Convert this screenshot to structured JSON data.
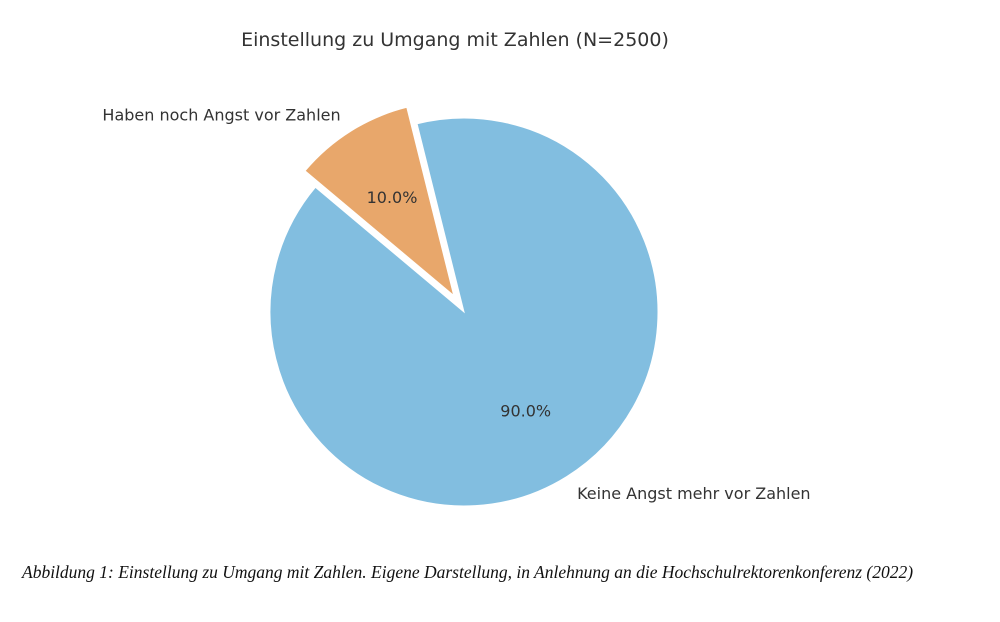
{
  "chart_data": {
    "type": "pie",
    "title": "Einstellung zu Umgang mit Zahlen (N=2500)",
    "categories": [
      "Keine Angst mehr vor Zahlen",
      "Haben noch Angst vor Zahlen"
    ],
    "values": [
      90.0,
      10.0
    ],
    "value_labels": [
      "90.0%",
      "10.0%"
    ],
    "colors": [
      "#82bee0",
      "#e8a76b"
    ],
    "explode": [
      0,
      0.1
    ],
    "start_angle": 140
  },
  "caption": "Abbildung 1: Einstellung zu Umgang mit Zahlen. Eigene Darstellung, in Anlehnung an die Hochschulrektorenkonferenz (2022)"
}
